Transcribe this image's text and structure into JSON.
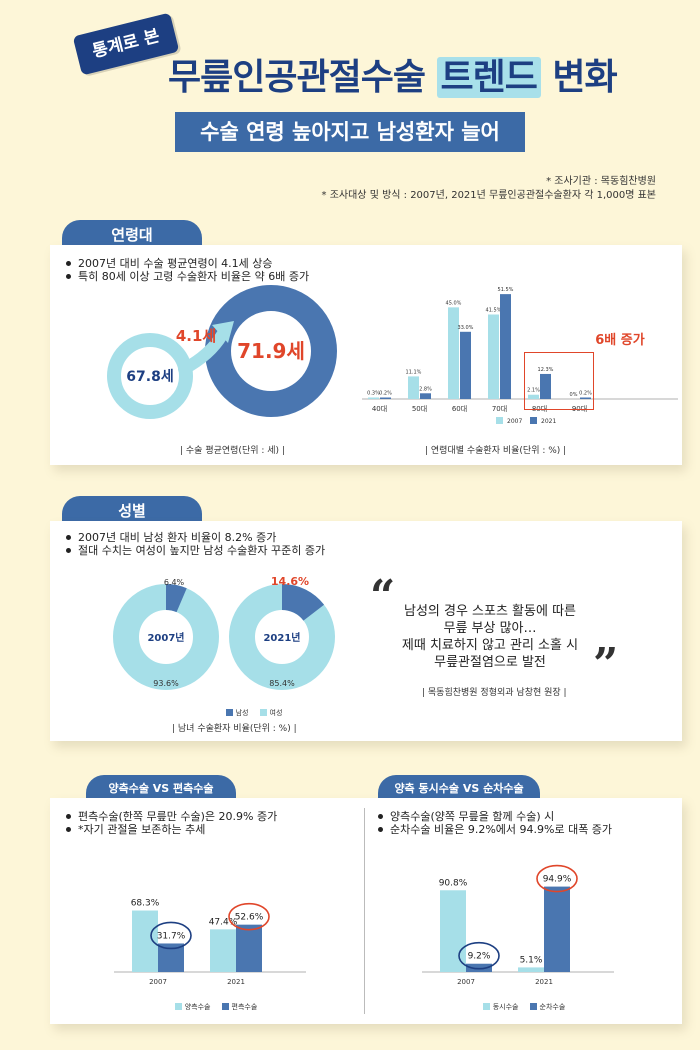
{
  "header": {
    "stamp": "통계로 본",
    "title_a": "무릎인공관절수술 ",
    "title_b": "트렌드",
    "title_c": " 변화",
    "subtitle": "수술 연령 높아지고 남성환자 늘어",
    "meta1": "* 조사기관 : 목동힘찬병원",
    "meta2": "* 조사대상 및 방식 : 2007년, 2021년 무릎인공관절수술환자 각 1,000명 표본"
  },
  "age_section": {
    "tab": "연령대",
    "bullet1": "2007년 대비 수술 평균연령이 4.1세 상승",
    "bullet2": "특히 80세 이상 고령 수술환자 비율은 약 6배 증가",
    "avg_2007": "67.8세",
    "avg_2021": "71.9세",
    "increase": "4.1세",
    "caption_left": "| 수술 평균연령(단위 : 세) |",
    "caption_right": "| 연령대별 수술환자 비율(단위 : %) |",
    "callout": "6배 증가"
  },
  "gender_section": {
    "tab": "성별",
    "bullet1": "2007년 대비 남성 환자 비율이 8.2% 증가",
    "bullet2": "절대 수치는 여성이 높지만 남성 수술환자 꾸준히 증가",
    "donut1_label": "2007년",
    "donut1_male": "6.4%",
    "donut1_female": "93.6%",
    "donut2_label": "2021년",
    "donut2_male": "14.6%",
    "donut2_female": "85.4%",
    "legend_male": "남성",
    "legend_female": "여성",
    "caption": "| 남녀 수술환자 비율(단위 : %) |",
    "quote": "남성의 경우 스포츠 활동에 따른\n무릎 부상 많아…\n제때 치료하지 않고 관리 소홀 시\n무릎관절염으로 발전",
    "quote_source": "| 목동힘찬병원 정형외과 남창현 원장 |"
  },
  "bilateral_section": {
    "tab": "양측수술 VS 편측수술",
    "bullet1": "편측수술(한쪽 무릎만 수술)은 20.9% 증가",
    "bullet1b": "*자기 관절을 보존하는 추세",
    "legend_a": "양측수술",
    "legend_b": "편측수술"
  },
  "simul_section": {
    "tab": "양측 동시수술 VS 순차수술",
    "bullet1": "양측수술(양쪽 무릎을 함께 수술) 시",
    "bullet1b": "순차수술 비율은 9.2%에서 94.9%로 대폭 증가",
    "legend_a": "동시수술",
    "legend_b": "순차수술"
  },
  "colors": {
    "light": "#a6dfe8",
    "dark": "#4a76b0",
    "navy": "#1d3f82",
    "accent": "#e0462a"
  },
  "chart_data": [
    {
      "type": "bar",
      "title": "연령대별 수술환자 비율(단위 : %)",
      "categories": [
        "40대",
        "50대",
        "60대",
        "70대",
        "80대",
        "90대"
      ],
      "series": [
        {
          "name": "2007",
          "values": [
            0.3,
            11.1,
            45.0,
            41.5,
            2.1,
            0.0
          ],
          "labels": [
            "0.3%",
            "11.1%",
            "45.0%",
            "41.5%",
            "2.1%",
            "0%"
          ]
        },
        {
          "name": "2021",
          "values": [
            0.2,
            2.8,
            33.0,
            51.5,
            12.3,
            0.2
          ],
          "labels": [
            "0.2%",
            "2.8%",
            "33.0%",
            "51.5%",
            "12.3%",
            "0.2%"
          ]
        }
      ],
      "ylim": [
        0,
        55
      ]
    },
    {
      "type": "pie",
      "title": "남녀 수술환자 비율(단위 : %)",
      "groups": [
        {
          "name": "2007년",
          "slices": [
            {
              "name": "남성",
              "value": 6.4
            },
            {
              "name": "여성",
              "value": 93.6
            }
          ]
        },
        {
          "name": "2021년",
          "slices": [
            {
              "name": "남성",
              "value": 14.6
            },
            {
              "name": "여성",
              "value": 85.4
            }
          ]
        }
      ]
    },
    {
      "type": "bar",
      "categories": [
        "2007년",
        "2021년"
      ],
      "series": [
        {
          "name": "양측수술",
          "values": [
            68.3,
            47.4
          ],
          "labels": [
            "68.3%",
            "47.4%"
          ]
        },
        {
          "name": "편측수술",
          "values": [
            31.7,
            52.6
          ],
          "labels": [
            "31.7%",
            "52.6%"
          ]
        }
      ],
      "ylim": [
        0,
        100
      ]
    },
    {
      "type": "bar",
      "categories": [
        "2007년",
        "2021년"
      ],
      "series": [
        {
          "name": "동시수술",
          "values": [
            90.8,
            5.1
          ],
          "labels": [
            "90.8%",
            "5.1%"
          ]
        },
        {
          "name": "순차수술",
          "values": [
            9.2,
            94.9
          ],
          "labels": [
            "9.2%",
            "94.9%"
          ]
        }
      ],
      "ylim": [
        0,
        100
      ]
    }
  ]
}
